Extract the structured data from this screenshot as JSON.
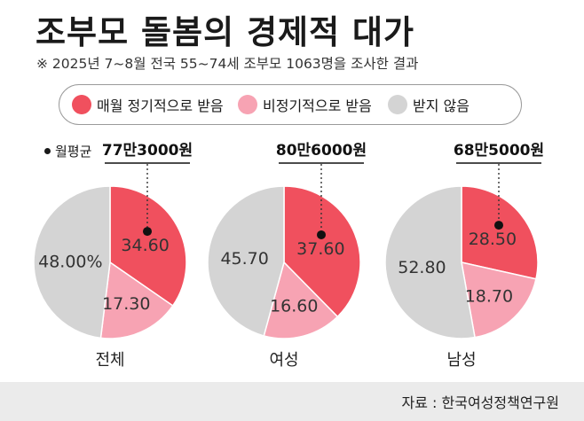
{
  "title": "조부모 돌봄의 경제적 대가",
  "subtitle": "※ 2025년 7~8월 전국 55~74세 조부모 1063명을 조사한 결과",
  "legend": [
    {
      "label": "매월 정기적으로 받음",
      "color": "#f0505e"
    },
    {
      "label": "비정기적으로 받음",
      "color": "#f7a3b3"
    },
    {
      "label": "받지 않음",
      "color": "#d4d4d4"
    }
  ],
  "avg_label": "월평균",
  "source": "자료 : 한국여성정책연구원",
  "chart_data": [
    {
      "type": "pie",
      "title": "전체",
      "monthly_average": "77만3000원",
      "slices": [
        {
          "name": "매월 정기적으로 받음",
          "value": 34.6,
          "label": "34.60",
          "color": "#f0505e"
        },
        {
          "name": "비정기적으로 받음",
          "value": 17.3,
          "label": "17.30",
          "color": "#f7a3b3"
        },
        {
          "name": "받지 않음",
          "value": 48.0,
          "label": "48.00%",
          "color": "#d4d4d4"
        }
      ]
    },
    {
      "type": "pie",
      "title": "여성",
      "monthly_average": "80만6000원",
      "slices": [
        {
          "name": "매월 정기적으로 받음",
          "value": 37.6,
          "label": "37.60",
          "color": "#f0505e"
        },
        {
          "name": "비정기적으로 받음",
          "value": 16.6,
          "label": "16.60",
          "color": "#f7a3b3"
        },
        {
          "name": "받지 않음",
          "value": 45.7,
          "label": "45.70",
          "color": "#d4d4d4"
        }
      ]
    },
    {
      "type": "pie",
      "title": "남성",
      "monthly_average": "68만5000원",
      "slices": [
        {
          "name": "매월 정기적으로 받음",
          "value": 28.5,
          "label": "28.50",
          "color": "#f0505e"
        },
        {
          "name": "비정기적으로 받음",
          "value": 18.7,
          "label": "18.70",
          "color": "#f7a3b3"
        },
        {
          "name": "받지 않음",
          "value": 52.8,
          "label": "52.80",
          "color": "#d4d4d4"
        }
      ]
    }
  ]
}
